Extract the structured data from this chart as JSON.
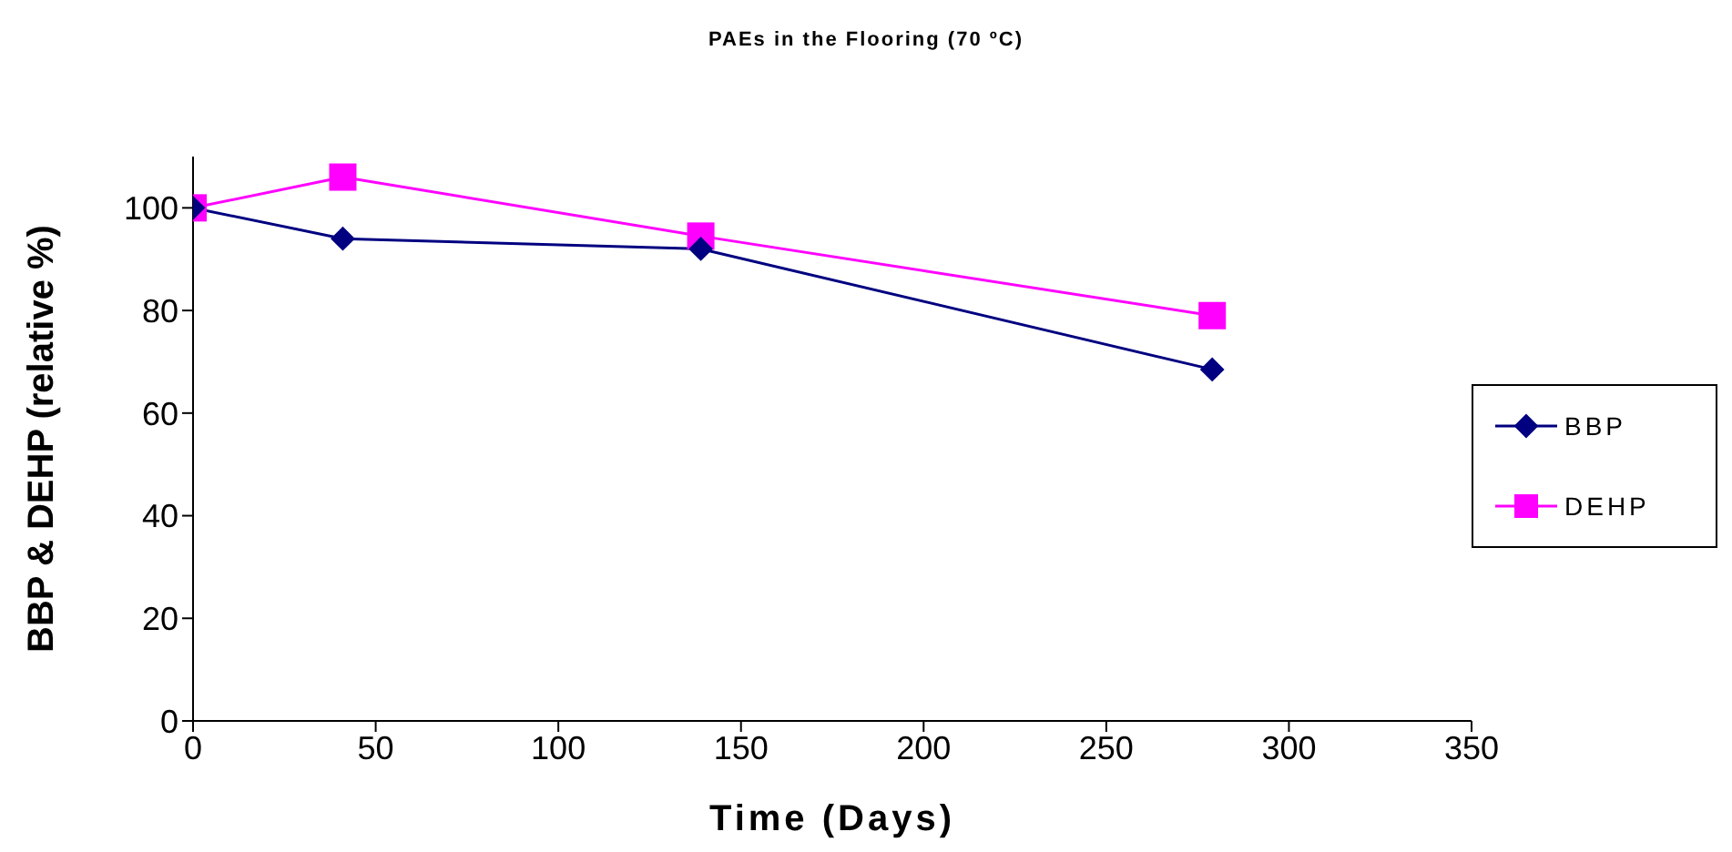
{
  "chart_data": {
    "type": "line",
    "title": "PAEs in the Flooring (70 ºC)",
    "xlabel": "Time (Days)",
    "ylabel": "BBP & DEHP (relative %)",
    "series": [
      {
        "name": "BBP",
        "color": "#000080",
        "marker": "diamond",
        "x": [
          0,
          41,
          139,
          279
        ],
        "values": [
          100,
          94,
          92,
          68.5
        ]
      },
      {
        "name": "DEHP",
        "color": "#ff00ff",
        "marker": "square",
        "x": [
          0,
          41,
          139,
          279
        ],
        "values": [
          100,
          106,
          94.5,
          79
        ]
      }
    ],
    "xlim": [
      0,
      350
    ],
    "xticks": [
      0,
      50,
      100,
      150,
      200,
      250,
      300,
      350
    ],
    "ylim": [
      0,
      110
    ],
    "yticks": [
      0,
      20,
      40,
      60,
      80,
      100
    ],
    "grid": false,
    "legend": "right"
  }
}
